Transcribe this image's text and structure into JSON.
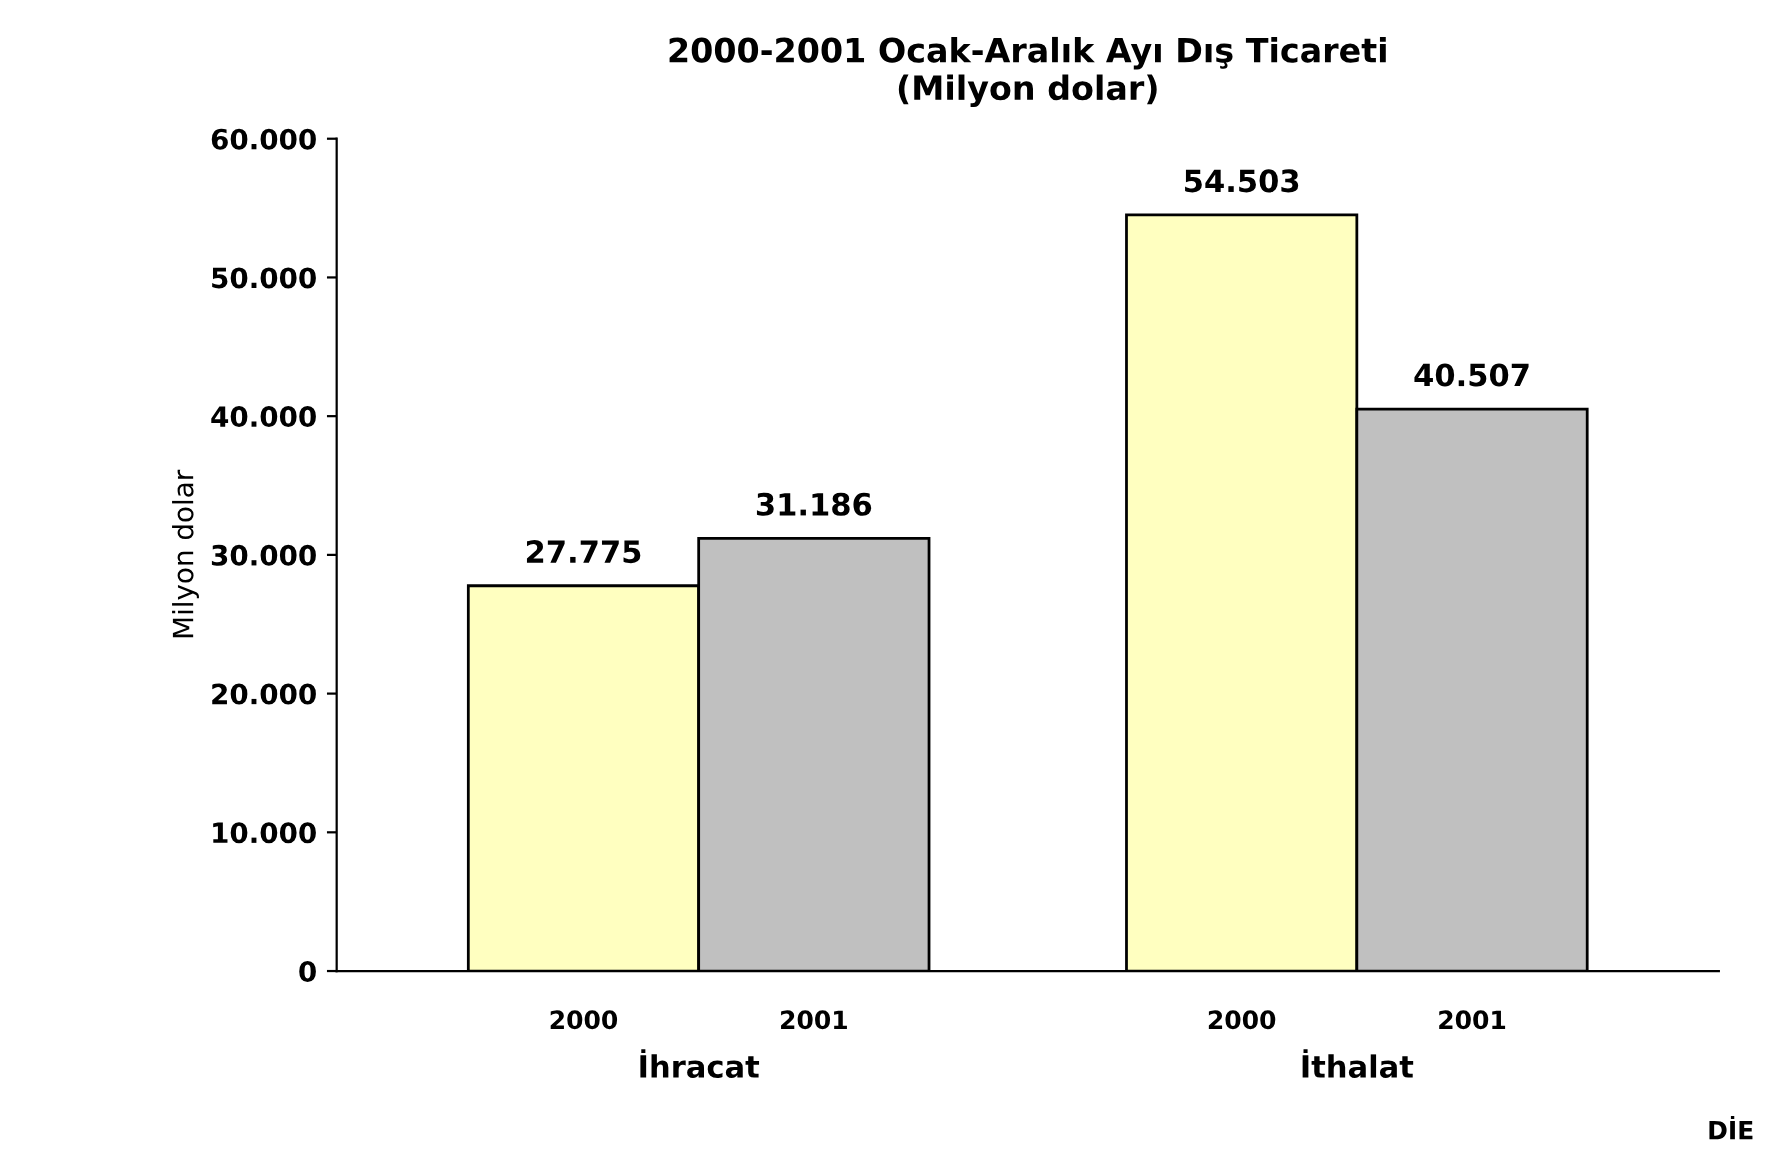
{
  "chart_data": {
    "type": "bar",
    "title": "2000-2001 Ocak-Aralık Ayı Dış Ticareti\n(Milyon dolar)",
    "ylabel": "Milyon dolar",
    "categories": [
      "İhracat",
      "İthalat"
    ],
    "series": [
      {
        "name": "2000",
        "color": "#ffffc0",
        "values": [
          27775,
          54503
        ],
        "value_labels": [
          "27.775",
          "54.503"
        ]
      },
      {
        "name": "2001",
        "color": "#c0c0c0",
        "values": [
          31186,
          40507
        ],
        "value_labels": [
          "31.186",
          "40.507"
        ]
      }
    ],
    "ylim": [
      0,
      60000
    ],
    "yticks": [
      {
        "value": 0,
        "label": "0"
      },
      {
        "value": 10000,
        "label": "10.000"
      },
      {
        "value": 20000,
        "label": "20.000"
      },
      {
        "value": 30000,
        "label": "30.000"
      },
      {
        "value": 40000,
        "label": "40.000"
      },
      {
        "value": 50000,
        "label": "50.000"
      },
      {
        "value": 60000,
        "label": "60.000"
      }
    ],
    "grid": false,
    "legend": false,
    "annotations": [
      "DİE"
    ]
  }
}
